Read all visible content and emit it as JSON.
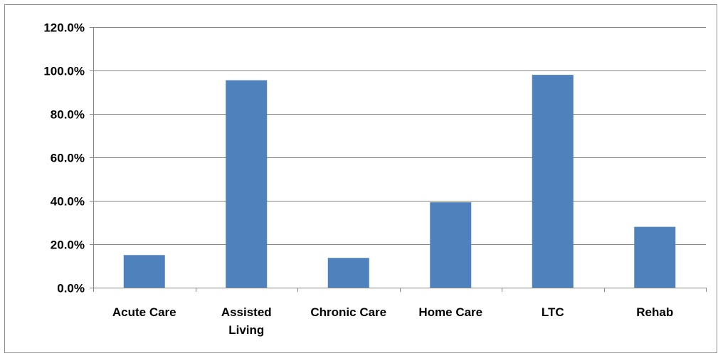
{
  "chart_data": {
    "type": "bar",
    "categories": [
      "Acute Care",
      "Assisted Living",
      "Chronic Care",
      "Home Care",
      "LTC",
      "Rehab"
    ],
    "category_label_lines": [
      [
        "Acute Care"
      ],
      [
        "Assisted",
        "Living"
      ],
      [
        "Chronic Care"
      ],
      [
        "Home Care"
      ],
      [
        "LTC"
      ],
      [
        "Rehab"
      ]
    ],
    "series": [
      {
        "values": [
          15.0,
          95.5,
          13.7,
          39.3,
          98.0,
          28.0
        ]
      }
    ],
    "ylim": [
      0,
      120
    ],
    "yticks": [
      0,
      20,
      40,
      60,
      80,
      100,
      120
    ],
    "ytick_labels": [
      "0.0%",
      "20.0%",
      "40.0%",
      "60.0%",
      "80.0%",
      "100.0%",
      "120.0%"
    ],
    "title": "",
    "xlabel": "",
    "ylabel": "",
    "grid": true,
    "legend": "none",
    "colors": {
      "bar": "#4f81bd",
      "grid": "#868686",
      "axis": "#868686"
    }
  }
}
